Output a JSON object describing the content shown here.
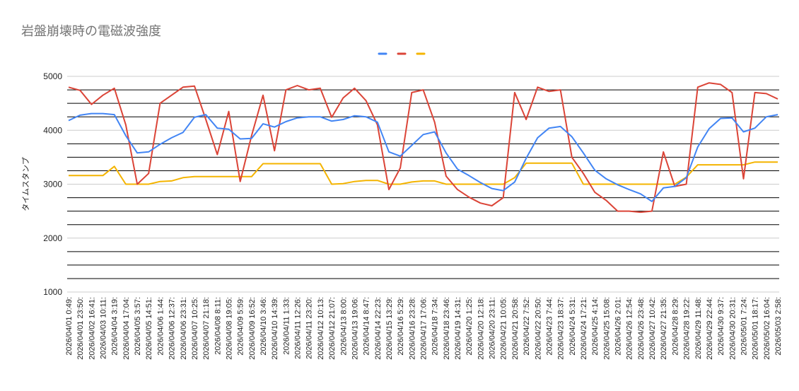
{
  "chart_data": {
    "type": "line",
    "title": "岩盤崩壊時の電磁波強度",
    "xlabel": "",
    "ylabel": "タイムスタンプ",
    "ylim": [
      1000,
      5000
    ],
    "yticks": [
      1000,
      2000,
      3000,
      4000,
      5000
    ],
    "grid": true,
    "legend_position": "top-center",
    "x": [
      "2026/04/01 0:49:",
      "2026/04/01 23:50:",
      "2026/04/02 16:41:",
      "2026/04/03 10:11:",
      "2026/04/04 3:19:",
      "2026/04/04 17:04:",
      "2026/04/05 3:57:",
      "2026/04/05 14:51:",
      "2026/04/06 1:44:",
      "2026/04/06 12:37:",
      "2026/04/06 23:31:",
      "2026/04/07 10:25:",
      "2026/04/07 21:18:",
      "2026/04/08 8:11:",
      "2026/04/08 19:05:",
      "2026/04/09 5:59:",
      "2026/04/09 16:52:",
      "2026/04/10 3:46:",
      "2026/04/10 14:39:",
      "2026/04/11 1:33:",
      "2026/04/11 12:26:",
      "2026/04/11 23:20:",
      "2026/04/12 10:13:",
      "2026/04/12 21:07:",
      "2026/04/13 8:00:",
      "2026/04/13 19:06:",
      "2026/04/14 8:47:",
      "2026/04/14 22:23:",
      "2026/04/15 13:29:",
      "2026/04/16 5:29:",
      "2026/04/16 23:28:",
      "2026/04/17 17:06:",
      "2026/04/18 7:34:",
      "2026/04/18 23:46:",
      "2026/04/19 14:31:",
      "2026/04/20 1:25:",
      "2026/04/20 12:18:",
      "2026/04/20 23:11:",
      "2026/04/21 10:05:",
      "2026/04/21 20:58:",
      "2026/04/22 7:52:",
      "2026/04/22 20:50:",
      "2026/04/23 7:44:",
      "2026/04/23 18:37:",
      "2026/04/24 5:31:",
      "2026/04/24 17:21:",
      "2026/04/25 4:14:",
      "2026/04/25 15:08:",
      "2026/04/26 2:01:",
      "2026/04/26 12:54:",
      "2026/04/26 23:48:",
      "2026/04/27 10:42:",
      "2026/04/27 21:35:",
      "2026/04/28 8:29:",
      "2026/04/28 19:22:",
      "2026/04/29 11:48:",
      "2026/04/29 22:44:",
      "2026/04/30 9:37:",
      "2026/04/30 20:31:",
      "2026/05/01 7:24:",
      "2026/05/01 18:17:",
      "2026/05/02 16:04:",
      "2026/05/03 2:58:"
    ],
    "series": [
      {
        "color": "#4285f4",
        "width": 2,
        "values": [
          4180,
          4280,
          4310,
          4310,
          4290,
          3900,
          3580,
          3600,
          3740,
          3860,
          3960,
          4240,
          4290,
          4040,
          4020,
          3840,
          3850,
          4120,
          4060,
          4160,
          4230,
          4250,
          4250,
          4170,
          4200,
          4270,
          4250,
          4150,
          3600,
          3520,
          3720,
          3920,
          3970,
          3580,
          3280,
          3160,
          3030,
          2920,
          2880,
          3040,
          3480,
          3860,
          4040,
          4070,
          3880,
          3580,
          3260,
          3100,
          2990,
          2900,
          2820,
          2680,
          2930,
          2960,
          3120,
          3690,
          4030,
          4220,
          4230,
          3970,
          4040,
          4250,
          4290
        ]
      },
      {
        "color": "#db4437",
        "width": 2,
        "values": [
          4800,
          4740,
          4480,
          4650,
          4780,
          4100,
          3000,
          3200,
          4500,
          4650,
          4800,
          4820,
          4200,
          3550,
          4350,
          3050,
          3900,
          4650,
          3620,
          4750,
          4830,
          4750,
          4780,
          4240,
          4600,
          4780,
          4550,
          4100,
          2900,
          3300,
          4700,
          4750,
          4150,
          3150,
          2900,
          2760,
          2650,
          2600,
          2750,
          4700,
          4200,
          4800,
          4720,
          4750,
          3500,
          3200,
          2850,
          2700,
          2500,
          2500,
          2480,
          2500,
          3600,
          2960,
          3000,
          4800,
          4880,
          4850,
          4700,
          3100,
          4700,
          4680,
          4580
        ]
      },
      {
        "color": "#f4b400",
        "width": 2,
        "values": [
          3160,
          3160,
          3160,
          3160,
          3330,
          3000,
          3000,
          3000,
          3050,
          3060,
          3120,
          3140,
          3140,
          3140,
          3140,
          3140,
          3140,
          3380,
          3380,
          3380,
          3380,
          3380,
          3380,
          3000,
          3010,
          3050,
          3070,
          3070,
          3000,
          3000,
          3040,
          3060,
          3060,
          3000,
          3000,
          3000,
          3000,
          3000,
          3000,
          3120,
          3390,
          3390,
          3390,
          3390,
          3390,
          3000,
          3000,
          3000,
          3000,
          3000,
          3000,
          3000,
          3000,
          3000,
          3130,
          3360,
          3360,
          3360,
          3360,
          3360,
          3410,
          3410,
          3410
        ]
      }
    ]
  }
}
